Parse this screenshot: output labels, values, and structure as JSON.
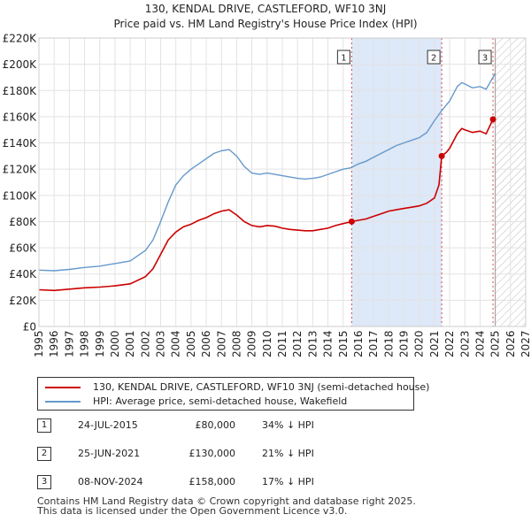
{
  "chart_data": {
    "type": "line",
    "title": "130, KENDAL DRIVE, CASTLEFORD, WF10 3NJ",
    "subtitle": "Price paid vs. HM Land Registry's House Price Index (HPI)",
    "xlim": [
      1995,
      2027
    ],
    "ylim": [
      0,
      220000
    ],
    "x_ticks": [
      1995,
      1996,
      1997,
      1998,
      1999,
      2000,
      2001,
      2002,
      2003,
      2004,
      2005,
      2006,
      2007,
      2008,
      2009,
      2010,
      2011,
      2012,
      2013,
      2014,
      2015,
      2016,
      2017,
      2018,
      2019,
      2020,
      2021,
      2022,
      2023,
      2024,
      2025,
      2026,
      2027
    ],
    "y_ticks": [
      0,
      20000,
      40000,
      60000,
      80000,
      100000,
      120000,
      140000,
      160000,
      180000,
      200000,
      220000
    ],
    "y_tick_labels": [
      "£0",
      "£20K",
      "£40K",
      "£60K",
      "£80K",
      "£100K",
      "£120K",
      "£140K",
      "£160K",
      "£180K",
      "£200K",
      "£220K"
    ],
    "forecast_from": 2025.0,
    "shaded_periods": [
      [
        2015.56,
        2021.48
      ]
    ],
    "colors": {
      "price": "#cc0000",
      "hpi": "#6699cc",
      "marker_line": "#cc0000",
      "shade": "#dde8f8"
    },
    "series": [
      {
        "name": "130, KENDAL DRIVE, CASTLEFORD, WF10 3NJ (semi-detached house)",
        "key": "price",
        "points": [
          [
            1995.0,
            28000
          ],
          [
            1996.0,
            27500
          ],
          [
            1997.0,
            28500
          ],
          [
            1998.0,
            29500
          ],
          [
            1999.0,
            30000
          ],
          [
            2000.0,
            31000
          ],
          [
            2001.0,
            32500
          ],
          [
            2002.0,
            38000
          ],
          [
            2002.5,
            44000
          ],
          [
            2003.0,
            55000
          ],
          [
            2003.5,
            66000
          ],
          [
            2004.0,
            72000
          ],
          [
            2004.5,
            76000
          ],
          [
            2005.0,
            78000
          ],
          [
            2005.5,
            81000
          ],
          [
            2006.0,
            83000
          ],
          [
            2006.5,
            86000
          ],
          [
            2007.0,
            88000
          ],
          [
            2007.5,
            89000
          ],
          [
            2008.0,
            85000
          ],
          [
            2008.5,
            80000
          ],
          [
            2009.0,
            77000
          ],
          [
            2009.5,
            76000
          ],
          [
            2010.0,
            77000
          ],
          [
            2010.5,
            76500
          ],
          [
            2011.0,
            75000
          ],
          [
            2011.5,
            74000
          ],
          [
            2012.0,
            73500
          ],
          [
            2012.5,
            73000
          ],
          [
            2013.0,
            73000
          ],
          [
            2013.5,
            74000
          ],
          [
            2014.0,
            75000
          ],
          [
            2014.5,
            77000
          ],
          [
            2015.0,
            78500
          ],
          [
            2015.56,
            80000
          ],
          [
            2016.0,
            81000
          ],
          [
            2016.5,
            82000
          ],
          [
            2017.0,
            84000
          ],
          [
            2017.5,
            86000
          ],
          [
            2018.0,
            88000
          ],
          [
            2018.5,
            89000
          ],
          [
            2019.0,
            90000
          ],
          [
            2019.5,
            91000
          ],
          [
            2020.0,
            92000
          ],
          [
            2020.5,
            94000
          ],
          [
            2021.0,
            98000
          ],
          [
            2021.3,
            108000
          ],
          [
            2021.48,
            130000
          ],
          [
            2021.8,
            133000
          ],
          [
            2022.0,
            136000
          ],
          [
            2022.5,
            147000
          ],
          [
            2022.8,
            151000
          ],
          [
            2023.0,
            150000
          ],
          [
            2023.5,
            148000
          ],
          [
            2024.0,
            149000
          ],
          [
            2024.4,
            147000
          ],
          [
            2024.85,
            158000
          ],
          [
            2025.0,
            157000
          ]
        ]
      },
      {
        "name": "HPI: Average price, semi-detached house, Wakefield",
        "key": "hpi",
        "points": [
          [
            1995.0,
            43000
          ],
          [
            1996.0,
            42500
          ],
          [
            1997.0,
            43500
          ],
          [
            1998.0,
            45000
          ],
          [
            1999.0,
            46000
          ],
          [
            2000.0,
            48000
          ],
          [
            2001.0,
            50000
          ],
          [
            2002.0,
            58000
          ],
          [
            2002.5,
            66000
          ],
          [
            2003.0,
            80000
          ],
          [
            2003.5,
            95000
          ],
          [
            2004.0,
            108000
          ],
          [
            2004.5,
            115000
          ],
          [
            2005.0,
            120000
          ],
          [
            2005.5,
            124000
          ],
          [
            2006.0,
            128000
          ],
          [
            2006.5,
            132000
          ],
          [
            2007.0,
            134000
          ],
          [
            2007.5,
            135000
          ],
          [
            2008.0,
            130000
          ],
          [
            2008.5,
            122000
          ],
          [
            2009.0,
            117000
          ],
          [
            2009.5,
            116000
          ],
          [
            2010.0,
            117000
          ],
          [
            2010.5,
            116000
          ],
          [
            2011.0,
            115000
          ],
          [
            2011.5,
            114000
          ],
          [
            2012.0,
            113000
          ],
          [
            2012.5,
            112500
          ],
          [
            2013.0,
            113000
          ],
          [
            2013.5,
            114000
          ],
          [
            2014.0,
            116000
          ],
          [
            2014.5,
            118000
          ],
          [
            2015.0,
            120000
          ],
          [
            2015.5,
            121000
          ],
          [
            2016.0,
            124000
          ],
          [
            2016.5,
            126000
          ],
          [
            2017.0,
            129000
          ],
          [
            2017.5,
            132000
          ],
          [
            2018.0,
            135000
          ],
          [
            2018.5,
            138000
          ],
          [
            2019.0,
            140000
          ],
          [
            2019.5,
            142000
          ],
          [
            2020.0,
            144000
          ],
          [
            2020.5,
            148000
          ],
          [
            2021.0,
            157000
          ],
          [
            2021.5,
            165000
          ],
          [
            2022.0,
            172000
          ],
          [
            2022.5,
            183000
          ],
          [
            2022.8,
            186000
          ],
          [
            2023.0,
            185000
          ],
          [
            2023.5,
            182000
          ],
          [
            2024.0,
            183000
          ],
          [
            2024.4,
            181000
          ],
          [
            2024.85,
            190000
          ],
          [
            2025.0,
            193000
          ]
        ]
      }
    ],
    "sales": [
      {
        "label": "1",
        "x": 2015.56,
        "y": 80000,
        "date": "24-JUL-2015",
        "price": "£80,000",
        "hpi_diff": "34% ↓ HPI"
      },
      {
        "label": "2",
        "x": 2021.48,
        "y": 130000,
        "date": "25-JUN-2021",
        "price": "£130,000",
        "hpi_diff": "21% ↓ HPI"
      },
      {
        "label": "3",
        "x": 2024.85,
        "y": 158000,
        "date": "08-NOV-2024",
        "price": "£158,000",
        "hpi_diff": "17% ↓ HPI"
      }
    ]
  },
  "legend": {
    "price_label": "130, KENDAL DRIVE, CASTLEFORD, WF10 3NJ (semi-detached house)",
    "hpi_label": "HPI: Average price, semi-detached house, Wakefield"
  },
  "footer": {
    "line1": "Contains HM Land Registry data © Crown copyright and database right 2025.",
    "line2": "This data is licensed under the Open Government Licence v3.0."
  }
}
